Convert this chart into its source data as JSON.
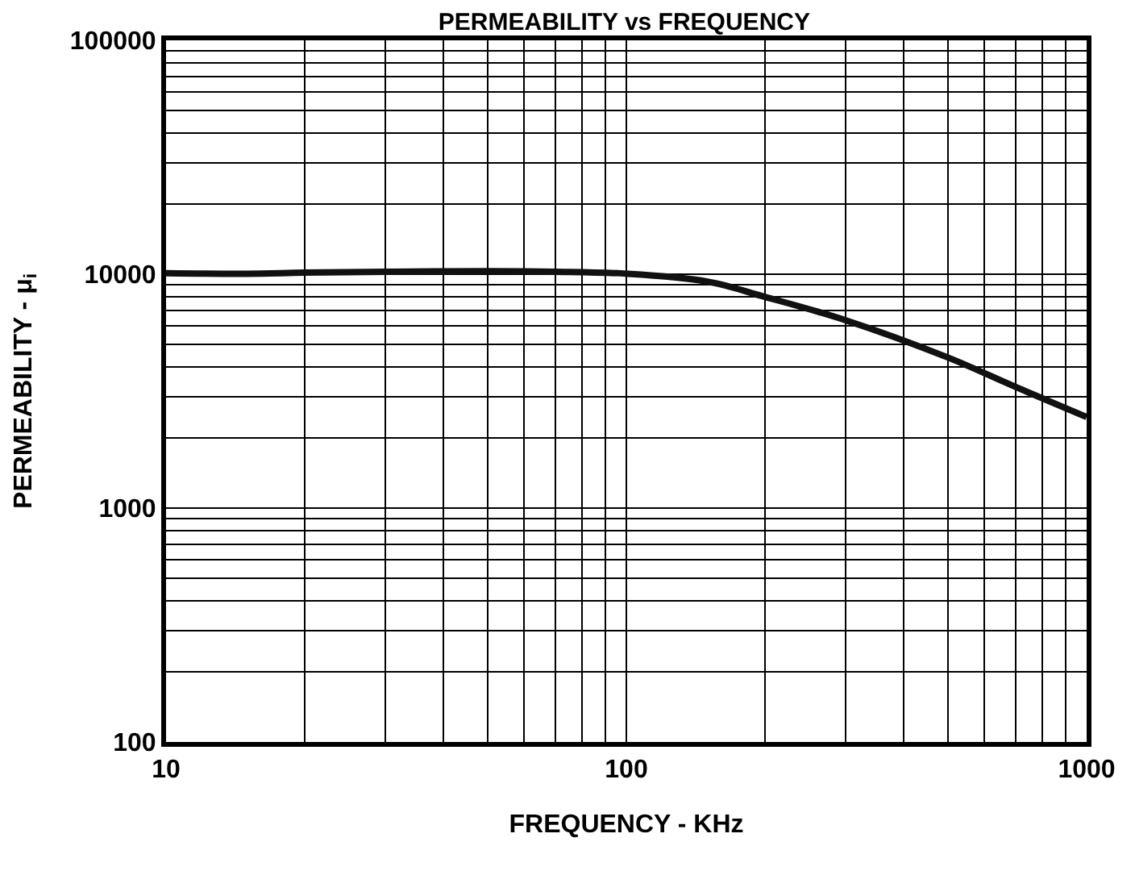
{
  "chart_data": {
    "type": "line",
    "title": "PERMEABILITY vs FREQUENCY",
    "xlabel": "FREQUENCY - KHz",
    "ylabel": "PERMEABILITY - μ$_{i}$",
    "x": [
      10,
      15,
      20,
      30,
      50,
      70,
      100,
      150,
      200,
      300,
      500,
      700,
      1000
    ],
    "series": [
      {
        "color": "#111111",
        "values": [
          10100,
          10050,
          10150,
          10250,
          10300,
          10250,
          10050,
          9300,
          8000,
          6350,
          4400,
          3300,
          2450
        ]
      }
    ],
    "xlim": [
      10,
      1000
    ],
    "xticks": [
      10,
      100,
      1000
    ],
    "ylim": [
      100,
      100000
    ],
    "yticks": [
      100,
      1000,
      10000,
      100000
    ],
    "log": "xy",
    "grid": true,
    "marker": "none",
    "line_style": "solid"
  }
}
